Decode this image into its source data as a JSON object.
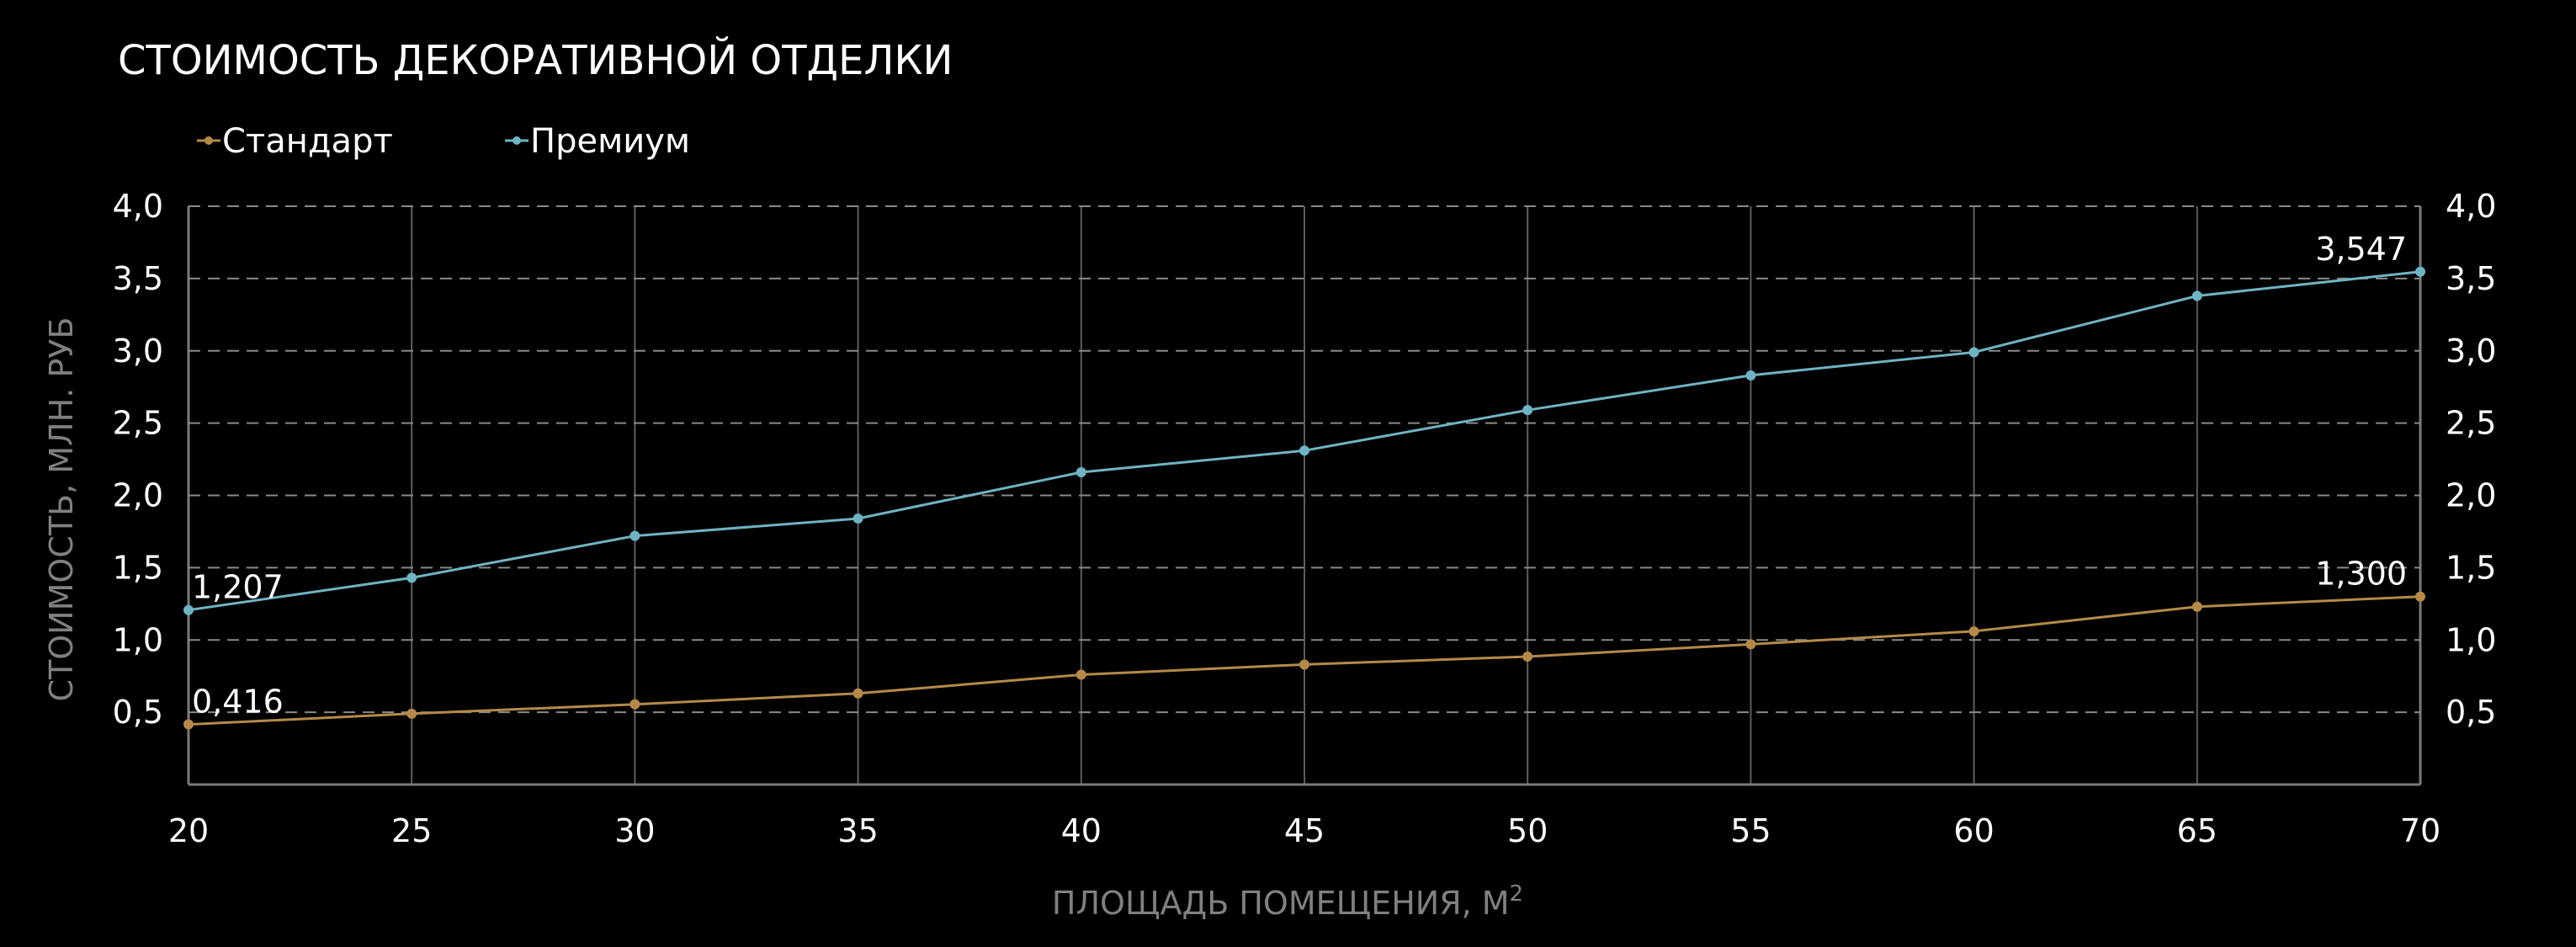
{
  "chart_data": {
    "type": "line",
    "title": "СТОИМОСТЬ ДЕКОРАТИВНОЙ ОТДЕЛКИ",
    "xlabel": "ПЛОЩАДЬ ПОМЕЩЕНИЯ, М",
    "xlabel_sup": "2",
    "ylabel": "СТОИМОСТЬ, МЛН. РУБ",
    "x": [
      20,
      25,
      30,
      35,
      40,
      45,
      50,
      55,
      60,
      65,
      70
    ],
    "xlim": [
      20,
      70
    ],
    "ylim": [
      0,
      4.0
    ],
    "y_ticks": [
      "0,5",
      "1,0",
      "1,5",
      "2,0",
      "2,5",
      "3,0",
      "3,5",
      "4,0"
    ],
    "x_ticks": [
      "20",
      "25",
      "30",
      "35",
      "40",
      "45",
      "50",
      "55",
      "60",
      "65",
      "70"
    ],
    "y_tick_values": [
      0.5,
      1.0,
      1.5,
      2.0,
      2.5,
      3.0,
      3.5,
      4.0
    ],
    "secondary_y_axis": true,
    "grid": true,
    "legend_position": "top-left",
    "series": [
      {
        "name": "Стандарт",
        "color": "#b5894a",
        "values": [
          0.416,
          0.49,
          0.555,
          0.63,
          0.76,
          0.83,
          0.885,
          0.97,
          1.06,
          1.23,
          1.3
        ],
        "labels": {
          "first": "0,416",
          "last": "1,300"
        }
      },
      {
        "name": "Премиум",
        "color": "#6fb3c4",
        "values": [
          1.207,
          1.43,
          1.72,
          1.84,
          2.16,
          2.31,
          2.59,
          2.83,
          2.99,
          3.38,
          3.547
        ],
        "labels": {
          "first": "1,207",
          "last": "3,547"
        }
      }
    ]
  }
}
